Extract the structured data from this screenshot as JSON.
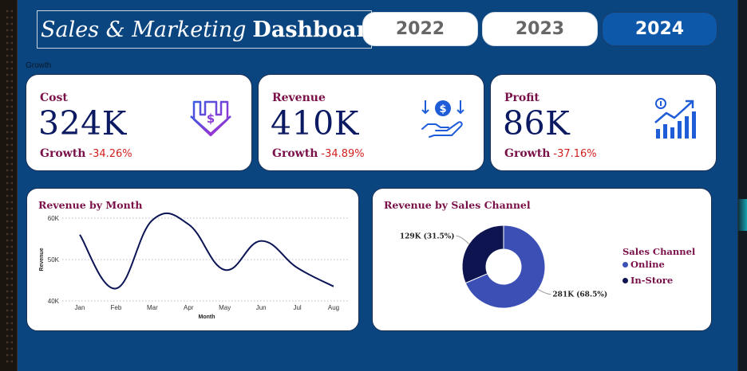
{
  "header": {
    "title_italic": "Sales & Marketing",
    "title_bold": "Dashboard"
  },
  "year_tabs": [
    {
      "label": "2022",
      "active": false
    },
    {
      "label": "2023",
      "active": false
    },
    {
      "label": "2024",
      "active": true
    }
  ],
  "section_label": "Growth",
  "kpis": [
    {
      "title": "Cost",
      "value": "324K",
      "growth_label": "Growth",
      "growth_value": "-34.26%",
      "icon": "dollar-down-arrow-icon"
    },
    {
      "title": "Revenue",
      "value": "410K",
      "growth_label": "Growth",
      "growth_value": "-34.89%",
      "icon": "hand-coin-icon"
    },
    {
      "title": "Profit",
      "value": "86K",
      "growth_label": "Growth",
      "growth_value": "-37.16%",
      "icon": "growth-bars-icon"
    }
  ],
  "colors": {
    "background": "#0a4580",
    "accent_text": "#7a1048",
    "value_text": "#0b1a62",
    "negative": "#d21f1f",
    "online": "#3c4fb4",
    "in_store": "#0e1450"
  },
  "chart_data": [
    {
      "type": "line",
      "title": "Revenue by Month",
      "xlabel": "Month",
      "ylabel": "Revenue",
      "categories": [
        "Jan",
        "Feb",
        "Mar",
        "Apr",
        "May",
        "Jun",
        "Jul",
        "Aug"
      ],
      "values": [
        56000,
        43000,
        59500,
        58500,
        47500,
        54500,
        48000,
        43500
      ],
      "yticks": [
        "40K",
        "50K",
        "60K"
      ],
      "ylim": [
        40000,
        60000
      ],
      "grid": true,
      "line_color": "#0b1455"
    },
    {
      "type": "pie",
      "title": "Revenue by Sales Channel",
      "donut": true,
      "legend_title": "Sales Channel",
      "legend_position": "right",
      "slices": [
        {
          "name": "Online",
          "value": 281,
          "label": "281K (68.5%)",
          "color": "#3c4fb4"
        },
        {
          "name": "In-Store",
          "value": 129,
          "label": "129K (31.5%)",
          "color": "#0e1450"
        }
      ]
    }
  ]
}
